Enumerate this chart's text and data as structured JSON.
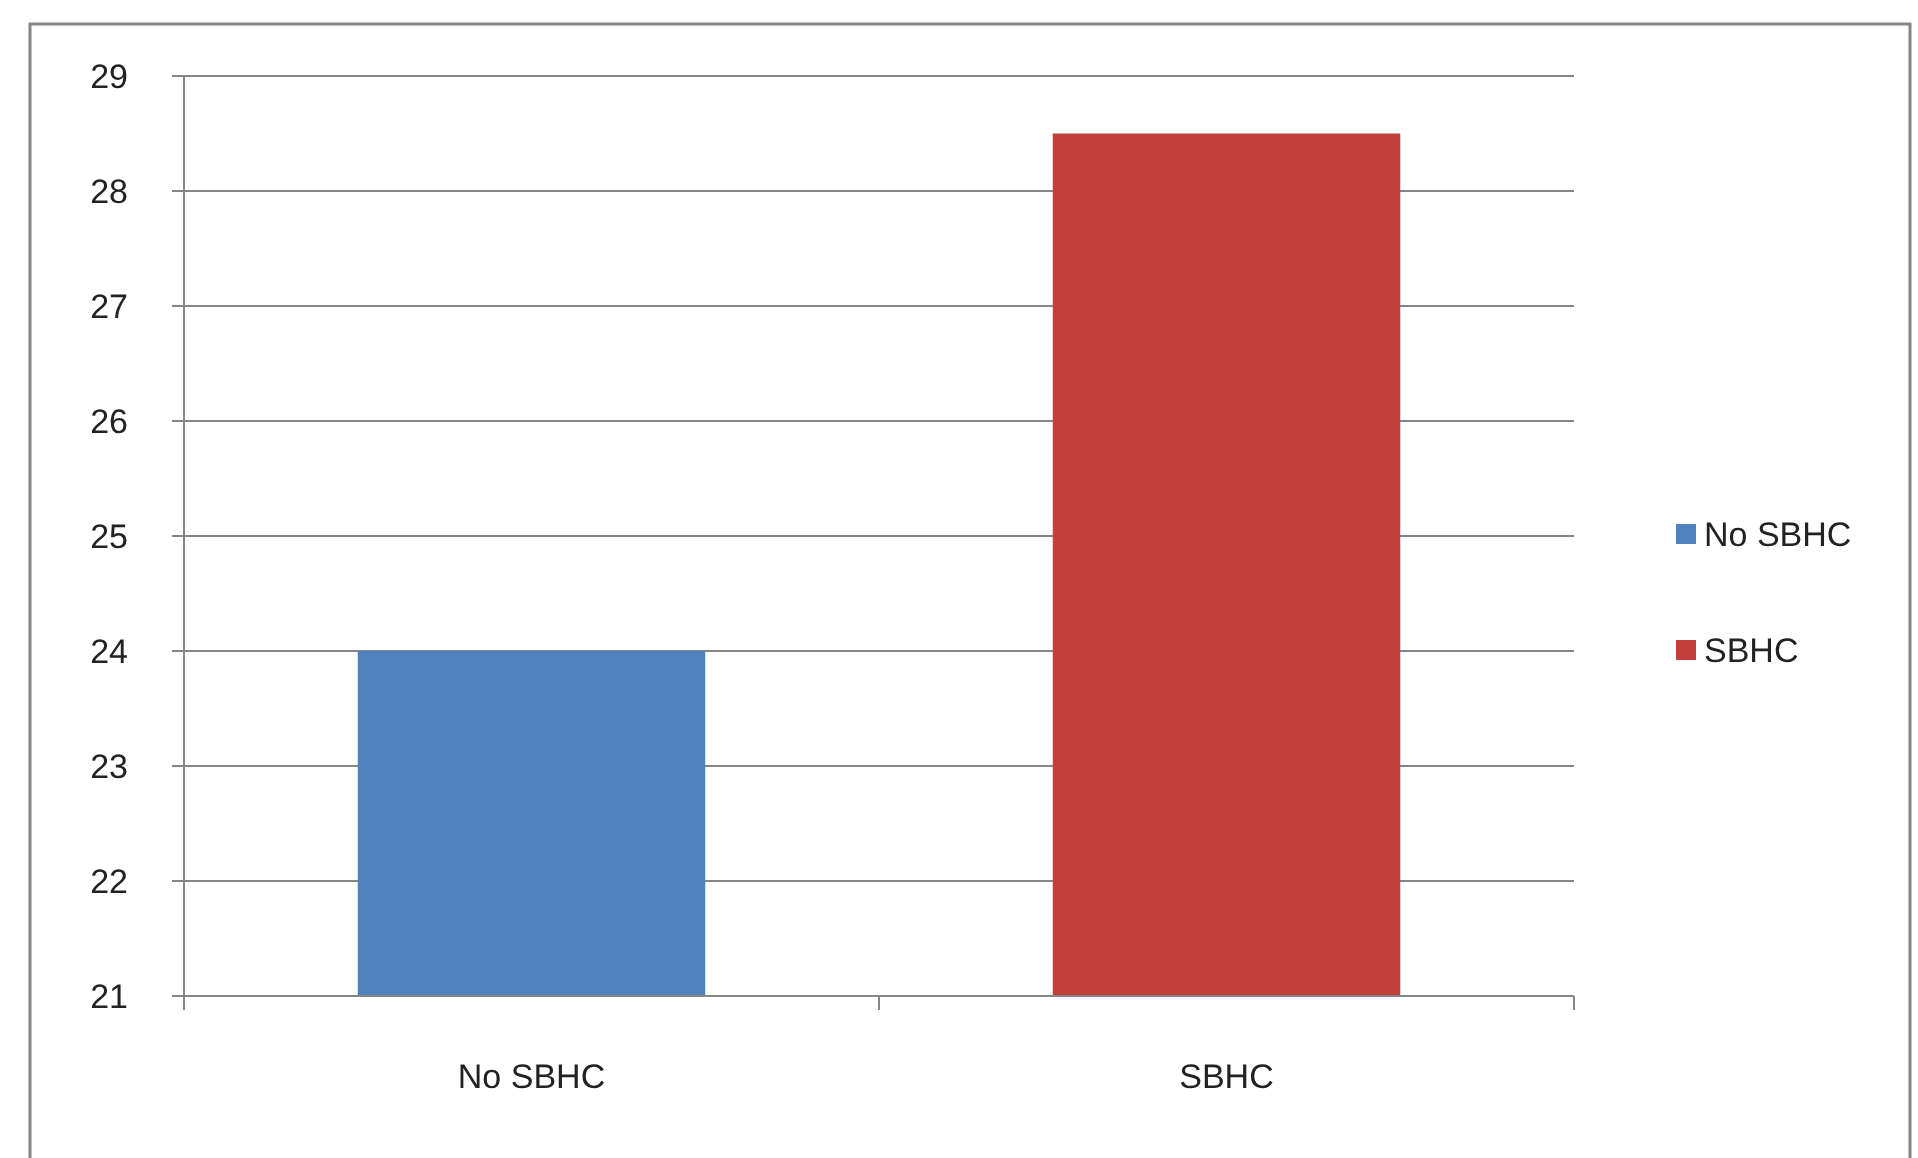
{
  "chart_data": {
    "type": "bar",
    "categories": [
      "No SBHC",
      "SBHC"
    ],
    "series": [
      {
        "name": "No SBHC",
        "color": "#4f81bd",
        "values": [
          24,
          null
        ]
      },
      {
        "name": "SBHC",
        "color": "#c0403a",
        "values": [
          null,
          28.5
        ]
      }
    ],
    "ylim": [
      21,
      29
    ],
    "yticks": [
      21,
      22,
      23,
      24,
      25,
      26,
      27,
      28,
      29
    ],
    "grid": "y",
    "legend": "right"
  }
}
